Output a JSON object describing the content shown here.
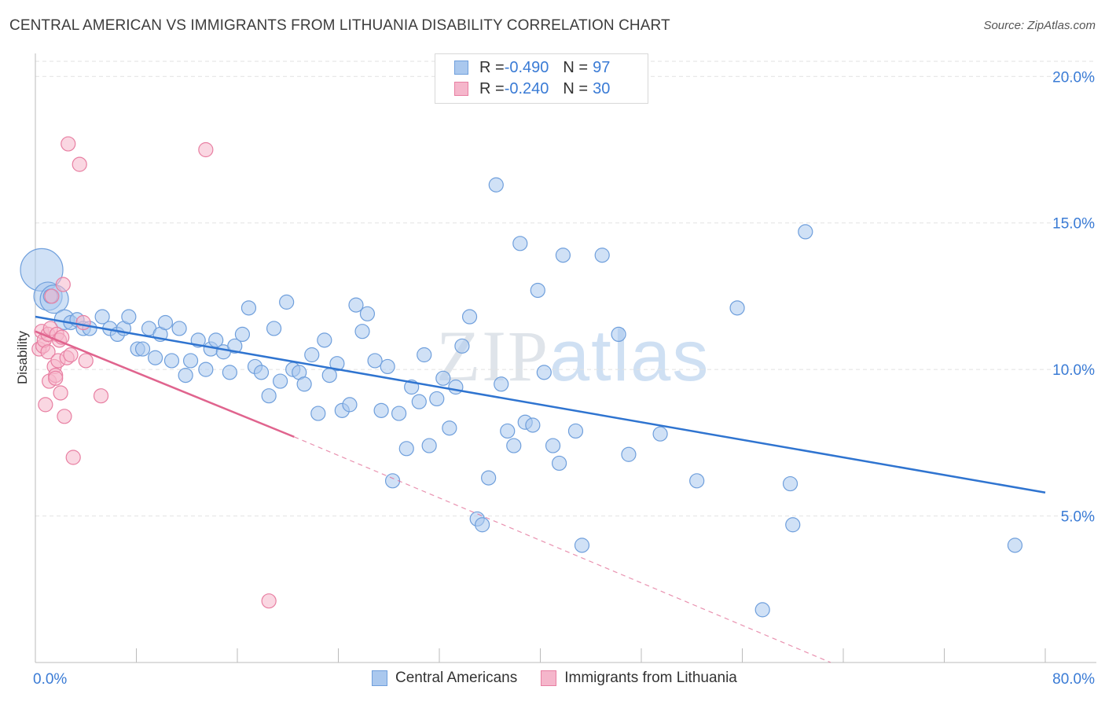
{
  "header": {
    "title": "CENTRAL AMERICAN VS IMMIGRANTS FROM LITHUANIA DISABILITY CORRELATION CHART",
    "source": "Source: ZipAtlas.com"
  },
  "watermark": {
    "part1": "ZIP",
    "part2": "atlas"
  },
  "legend_top": {
    "rows": [
      {
        "r_label": "R = ",
        "r_value": "-0.490",
        "n_label": "N = ",
        "n_value": "97"
      },
      {
        "r_label": "R = ",
        "r_value": "-0.240",
        "n_label": "N = ",
        "n_value": "30"
      }
    ]
  },
  "legend_bottom": {
    "items": [
      {
        "label": "Central Americans"
      },
      {
        "label": "Immigrants from Lithuania"
      }
    ]
  },
  "colors": {
    "blue_fill": "#aac8ee",
    "blue_stroke": "#6f9fdc",
    "blue_line": "#2f74d0",
    "pink_fill": "#f5b6cb",
    "pink_stroke": "#e87fa2",
    "pink_line": "#e0648e",
    "grid": "#e2e2e2",
    "tick_text": "#3a7bd5"
  },
  "chart_data": {
    "type": "scatter",
    "title": "CENTRAL AMERICAN VS IMMIGRANTS FROM LITHUANIA DISABILITY CORRELATION CHART",
    "xlabel": "",
    "ylabel": "Disability",
    "xlim": [
      0,
      80
    ],
    "ylim": [
      0,
      21
    ],
    "x_ticks": [
      0,
      80
    ],
    "x_tick_labels": [
      "0.0%",
      "80.0%"
    ],
    "y_ticks": [
      5,
      10,
      15,
      20
    ],
    "y_tick_labels": [
      "5.0%",
      "10.0%",
      "15.0%",
      "20.0%"
    ],
    "grid": true,
    "legend_position": "top-center",
    "series": [
      {
        "name": "Central Americans",
        "r": -0.49,
        "n": 97,
        "trend": {
          "x0": 0,
          "y0": 11.8,
          "x1": 80,
          "y1": 5.8
        },
        "points": [
          [
            0.5,
            13.4,
            3
          ],
          [
            1.0,
            12.5,
            2
          ],
          [
            1.5,
            12.4,
            2
          ],
          [
            1.2,
            12.5,
            1
          ],
          [
            2.3,
            11.7,
            1.4
          ],
          [
            2.8,
            11.6,
            1
          ],
          [
            3.3,
            11.7,
            1
          ],
          [
            3.8,
            11.4,
            1
          ],
          [
            4.3,
            11.4,
            1
          ],
          [
            5.3,
            11.8,
            1
          ],
          [
            5.9,
            11.4,
            1
          ],
          [
            6.5,
            11.2,
            1
          ],
          [
            7.0,
            11.4,
            1
          ],
          [
            7.4,
            11.8,
            1
          ],
          [
            8.1,
            10.7,
            1
          ],
          [
            8.5,
            10.7,
            1
          ],
          [
            9.0,
            11.4,
            1
          ],
          [
            9.5,
            10.4,
            1
          ],
          [
            9.9,
            11.2,
            1
          ],
          [
            10.3,
            11.6,
            1
          ],
          [
            10.8,
            10.3,
            1
          ],
          [
            11.4,
            11.4,
            1
          ],
          [
            11.9,
            9.8,
            1
          ],
          [
            12.3,
            10.3,
            1
          ],
          [
            12.9,
            11.0,
            1
          ],
          [
            13.5,
            10.0,
            1
          ],
          [
            13.9,
            10.7,
            1
          ],
          [
            14.3,
            11.0,
            1
          ],
          [
            14.9,
            10.6,
            1
          ],
          [
            15.4,
            9.9,
            1
          ],
          [
            15.8,
            10.8,
            1
          ],
          [
            16.4,
            11.2,
            1
          ],
          [
            16.9,
            12.1,
            1
          ],
          [
            17.4,
            10.1,
            1
          ],
          [
            17.9,
            9.9,
            1
          ],
          [
            18.5,
            9.1,
            1
          ],
          [
            18.9,
            11.4,
            1
          ],
          [
            19.4,
            9.6,
            1
          ],
          [
            19.9,
            12.3,
            1
          ],
          [
            20.4,
            10.0,
            1
          ],
          [
            20.9,
            9.9,
            1
          ],
          [
            21.3,
            9.5,
            1
          ],
          [
            21.9,
            10.5,
            1
          ],
          [
            22.4,
            8.5,
            1
          ],
          [
            22.9,
            11.0,
            1
          ],
          [
            23.3,
            9.8,
            1
          ],
          [
            23.9,
            10.2,
            1
          ],
          [
            24.3,
            8.6,
            1
          ],
          [
            24.9,
            8.8,
            1
          ],
          [
            25.4,
            12.2,
            1
          ],
          [
            25.9,
            11.3,
            1
          ],
          [
            26.3,
            11.9,
            1
          ],
          [
            26.9,
            10.3,
            1
          ],
          [
            27.4,
            8.6,
            1
          ],
          [
            27.9,
            10.1,
            1
          ],
          [
            28.3,
            6.2,
            1
          ],
          [
            28.8,
            8.5,
            1
          ],
          [
            29.4,
            7.3,
            1
          ],
          [
            29.8,
            9.4,
            1
          ],
          [
            30.4,
            8.9,
            1
          ],
          [
            30.8,
            10.5,
            1
          ],
          [
            31.2,
            7.4,
            1
          ],
          [
            31.8,
            9.0,
            1
          ],
          [
            32.3,
            9.7,
            1
          ],
          [
            32.8,
            8.0,
            1
          ],
          [
            33.3,
            9.4,
            1
          ],
          [
            33.8,
            10.8,
            1
          ],
          [
            34.4,
            11.8,
            1
          ],
          [
            35.0,
            4.9,
            1
          ],
          [
            35.4,
            4.7,
            1
          ],
          [
            35.9,
            6.3,
            1
          ],
          [
            36.5,
            16.3,
            1
          ],
          [
            36.9,
            9.5,
            1
          ],
          [
            37.4,
            7.9,
            1
          ],
          [
            37.9,
            7.4,
            1
          ],
          [
            38.4,
            14.3,
            1
          ],
          [
            38.8,
            8.2,
            1
          ],
          [
            39.4,
            8.1,
            1
          ],
          [
            39.8,
            12.7,
            1
          ],
          [
            40.3,
            9.9,
            1
          ],
          [
            41.0,
            7.4,
            1
          ],
          [
            41.5,
            6.8,
            1
          ],
          [
            41.8,
            13.9,
            1
          ],
          [
            42.8,
            7.9,
            1
          ],
          [
            43.3,
            4.0,
            1
          ],
          [
            44.9,
            13.9,
            1
          ],
          [
            46.2,
            11.2,
            1
          ],
          [
            47.0,
            7.1,
            1
          ],
          [
            49.5,
            7.8,
            1
          ],
          [
            52.4,
            6.2,
            1
          ],
          [
            55.6,
            12.1,
            1
          ],
          [
            57.6,
            1.8,
            1
          ],
          [
            59.8,
            6.1,
            1
          ],
          [
            60.0,
            4.7,
            1
          ],
          [
            61.0,
            14.7,
            1
          ],
          [
            77.6,
            4.0,
            1
          ]
        ]
      },
      {
        "name": "Immigrants from Lithuania",
        "r": -0.24,
        "n": 30,
        "trend": {
          "x0": 0,
          "y0": 11.3,
          "x1": 20.5,
          "y1": 7.7,
          "dash_x1": 63,
          "dash_y1": 0
        },
        "points": [
          [
            0.3,
            10.7,
            1
          ],
          [
            0.5,
            11.3,
            1
          ],
          [
            0.6,
            10.8,
            1
          ],
          [
            0.7,
            11.0,
            1
          ],
          [
            0.8,
            8.8,
            1
          ],
          [
            1.0,
            10.6,
            1
          ],
          [
            1.0,
            11.2,
            1
          ],
          [
            1.1,
            9.6,
            1
          ],
          [
            1.2,
            11.4,
            1
          ],
          [
            1.3,
            12.5,
            1
          ],
          [
            1.5,
            10.1,
            1
          ],
          [
            1.6,
            9.8,
            1
          ],
          [
            1.6,
            9.7,
            1
          ],
          [
            1.7,
            11.2,
            1
          ],
          [
            1.8,
            10.3,
            1
          ],
          [
            1.9,
            11.0,
            1
          ],
          [
            2.0,
            9.2,
            1
          ],
          [
            2.1,
            11.1,
            1
          ],
          [
            2.2,
            12.9,
            1
          ],
          [
            2.3,
            8.4,
            1
          ],
          [
            2.5,
            10.4,
            1
          ],
          [
            2.6,
            17.7,
            1
          ],
          [
            2.8,
            10.5,
            1
          ],
          [
            3.0,
            7.0,
            1
          ],
          [
            3.5,
            17.0,
            1
          ],
          [
            3.8,
            11.6,
            1
          ],
          [
            4.0,
            10.3,
            1
          ],
          [
            5.2,
            9.1,
            1
          ],
          [
            13.5,
            17.5,
            1
          ],
          [
            18.5,
            2.1,
            1
          ]
        ]
      }
    ]
  }
}
